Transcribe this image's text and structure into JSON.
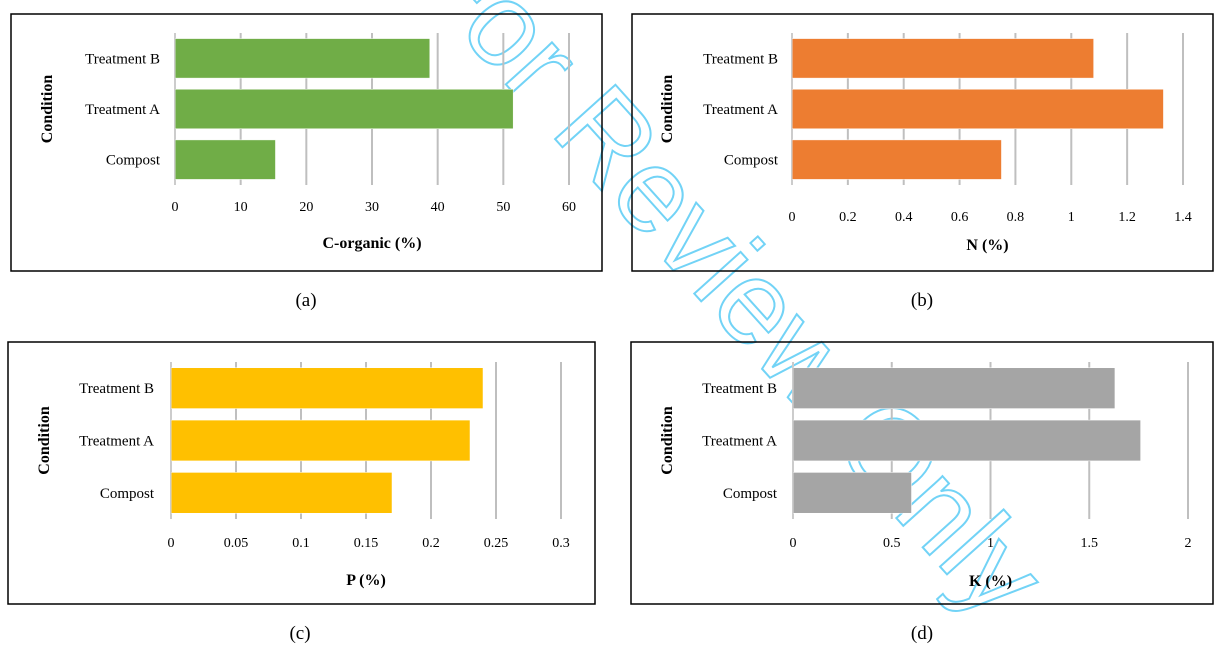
{
  "figure": {
    "watermark_text": "For Review Only",
    "watermark_color": "#00B0F0"
  },
  "chart_data": [
    {
      "type": "bar",
      "orientation": "horizontal",
      "caption": "(a)",
      "categories": [
        "Compost",
        "Treatment A",
        "Treatment B"
      ],
      "values": [
        15.3,
        51.5,
        38.8
      ],
      "xlabel": "C-organic (%)",
      "ylabel": "Condition",
      "xlim": [
        0,
        60
      ],
      "xticks": [
        0,
        10,
        20,
        30,
        40,
        50,
        60
      ],
      "xtick_labels": [
        "0",
        "10",
        "20",
        "30",
        "40",
        "50",
        "60"
      ],
      "color": "#70AD47",
      "grid": true,
      "legend": "none"
    },
    {
      "type": "bar",
      "orientation": "horizontal",
      "caption": "(b)",
      "categories": [
        "Compost",
        "Treatment A",
        "Treatment B"
      ],
      "values": [
        0.75,
        1.33,
        1.08
      ],
      "xlabel": "N (%)",
      "ylabel": "Condition",
      "xlim": [
        0,
        1.4
      ],
      "xticks": [
        0,
        0.2,
        0.4,
        0.6,
        0.8,
        1,
        1.2,
        1.4
      ],
      "xtick_labels": [
        "0",
        "0.2",
        "0.4",
        "0.6",
        "0.8",
        "1",
        "1.2",
        "1.4"
      ],
      "color": "#ED7D31",
      "grid": true,
      "legend": "none"
    },
    {
      "type": "bar",
      "orientation": "horizontal",
      "caption": "(c)",
      "categories": [
        "Compost",
        "Treatment A",
        "Treatment B"
      ],
      "values": [
        0.17,
        0.23,
        0.24
      ],
      "xlabel": "P (%)",
      "ylabel": "Condition",
      "xlim": [
        0,
        0.3
      ],
      "xticks": [
        0,
        0.05,
        0.1,
        0.15,
        0.2,
        0.25,
        0.3
      ],
      "xtick_labels": [
        "0",
        "0.05",
        "0.1",
        "0.15",
        "0.2",
        "0.25",
        "0.3"
      ],
      "color": "#FFC000",
      "grid": true,
      "legend": "none"
    },
    {
      "type": "bar",
      "orientation": "horizontal",
      "caption": "(d)",
      "categories": [
        "Compost",
        "Treatment A",
        "Treatment B"
      ],
      "values": [
        0.6,
        1.76,
        1.63
      ],
      "xlabel": "K (%)",
      "ylabel": "Condition",
      "xlim": [
        0,
        2
      ],
      "xticks": [
        0,
        0.5,
        1,
        1.5,
        2
      ],
      "xtick_labels": [
        "0",
        "0.5",
        "1",
        "1.5",
        "2"
      ],
      "color": "#A5A5A5",
      "grid": true,
      "legend": "none"
    }
  ]
}
